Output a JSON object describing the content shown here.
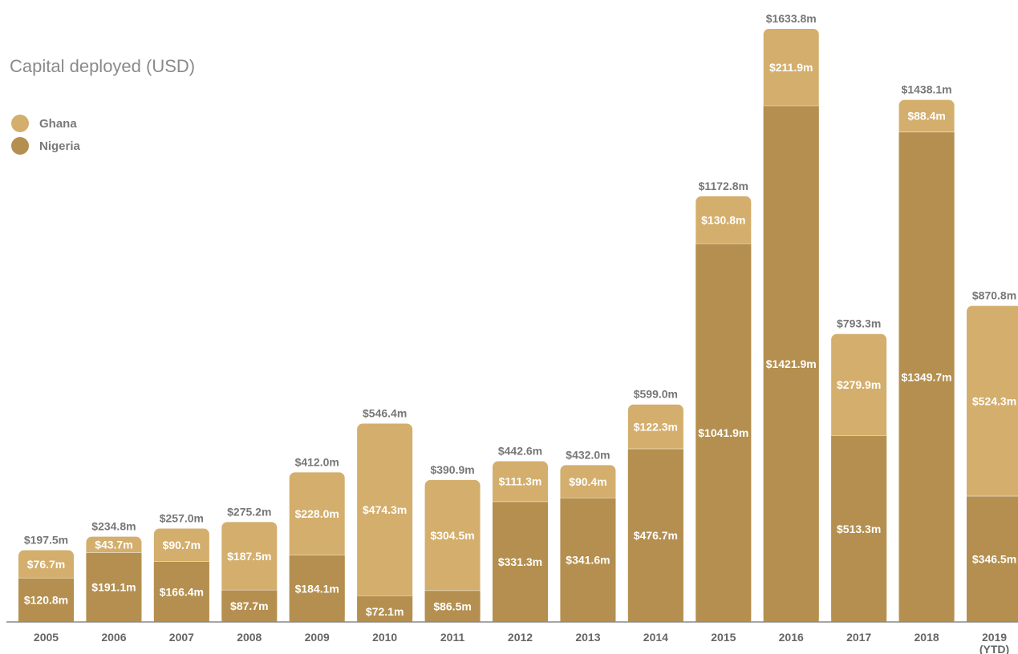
{
  "chart_data": {
    "type": "bar",
    "stacked": true,
    "title": "Capital deployed (USD)",
    "value_prefix": "$",
    "value_suffix": "m",
    "categories": [
      "2005",
      "2006",
      "2007",
      "2008",
      "2009",
      "2010",
      "2011",
      "2012",
      "2013",
      "2014",
      "2015",
      "2016",
      "2017",
      "2018",
      "2019"
    ],
    "category_sublabels": [
      "",
      "",
      "",
      "",
      "",
      "",
      "",
      "",
      "",
      "",
      "",
      "",
      "",
      "",
      "(YTD)"
    ],
    "series": [
      {
        "name": "Nigeria",
        "color": "#b48f4f",
        "values": [
          120.8,
          191.1,
          166.4,
          87.7,
          184.1,
          72.1,
          86.5,
          331.3,
          341.6,
          476.7,
          1041.9,
          1421.9,
          513.3,
          1349.7,
          346.5
        ]
      },
      {
        "name": "Ghana",
        "color": "#d4ae6c",
        "values": [
          76.7,
          43.7,
          90.7,
          187.5,
          228.0,
          474.3,
          304.5,
          111.3,
          90.4,
          122.3,
          130.8,
          211.9,
          279.9,
          88.4,
          524.3
        ]
      }
    ],
    "totals": [
      197.5,
      234.8,
      257.0,
      275.2,
      412.0,
      546.4,
      390.9,
      442.6,
      432.0,
      599.0,
      1172.8,
      1633.8,
      793.3,
      1438.1,
      870.8
    ],
    "ylim": [
      0,
      1700
    ],
    "grid": false,
    "legend_position": "top-left",
    "xlabel": "",
    "ylabel": ""
  }
}
